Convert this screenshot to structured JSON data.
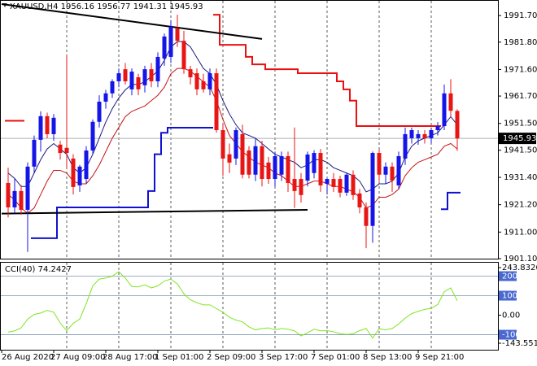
{
  "chart_data": [
    {
      "type": "candlestick",
      "title": "XAUUSD,H4",
      "ohlc": [
        [
          1929.3,
          1935.0,
          1916.5,
          1920.2
        ],
        [
          1920.2,
          1931.0,
          1918.0,
          1926.3
        ],
        [
          1926.3,
          1928.5,
          1917.5,
          1919.3
        ],
        [
          1919.3,
          1937.0,
          1903.6,
          1935.4
        ],
        [
          1935.4,
          1947.0,
          1933.0,
          1945.4
        ],
        [
          1945.4,
          1956.0,
          1941.0,
          1954.2
        ],
        [
          1954.2,
          1955.5,
          1946.0,
          1947.5
        ],
        [
          1947.5,
          1955.0,
          1945.0,
          1953.6
        ],
        [
          1943.6,
          1945.0,
          1938.0,
          1940.5
        ],
        [
          1942.4,
          1977.0,
          1935.0,
          1940.5
        ],
        [
          1938.4,
          1940.0,
          1925.0,
          1927.8
        ],
        [
          1928.4,
          1936.0,
          1926.0,
          1935.4
        ],
        [
          1930.8,
          1943.0,
          1929.0,
          1941.4
        ],
        [
          1941.4,
          1953.0,
          1940.0,
          1952.1
        ],
        [
          1952.1,
          1962.0,
          1950.0,
          1959.6
        ],
        [
          1959.6,
          1964.0,
          1957.0,
          1962.7
        ],
        [
          1962.7,
          1968.0,
          1961.0,
          1967.2
        ],
        [
          1967.2,
          1972.0,
          1965.0,
          1970.2
        ],
        [
          1971.7,
          1974.0,
          1966.0,
          1967.2
        ],
        [
          1964.2,
          1972.0,
          1962.0,
          1970.8
        ],
        [
          1968.7,
          1970.0,
          1962.0,
          1964.2
        ],
        [
          1965.7,
          1973.0,
          1963.0,
          1971.7
        ],
        [
          1971.7,
          1974.0,
          1965.0,
          1967.2
        ],
        [
          1967.2,
          1978.0,
          1965.0,
          1976.3
        ],
        [
          1975.7,
          1985.0,
          1973.0,
          1983.9
        ],
        [
          1976.3,
          1990.0,
          1974.0,
          1987.5
        ],
        [
          1986.9,
          1992.0,
          1980.0,
          1982.3
        ],
        [
          1982.3,
          1986.0,
          1970.0,
          1971.7
        ],
        [
          1971.7,
          1973.0,
          1966.0,
          1968.7
        ],
        [
          1970.2,
          1972.0,
          1962.0,
          1964.2
        ],
        [
          1967.2,
          1970.0,
          1963.0,
          1964.2
        ],
        [
          1964.2,
          1972.0,
          1962.0,
          1970.2
        ],
        [
          1970.2,
          1972.0,
          1948.0,
          1949.0
        ],
        [
          1949.0,
          1951.0,
          1932.0,
          1938.4
        ],
        [
          1940.0,
          1944.0,
          1933.0,
          1936.9
        ],
        [
          1938.4,
          1950.0,
          1936.0,
          1949.0
        ],
        [
          1947.5,
          1951.0,
          1931.0,
          1932.4
        ],
        [
          1941.4,
          1943.0,
          1931.0,
          1932.4
        ],
        [
          1932.4,
          1946.0,
          1930.0,
          1943.0
        ],
        [
          1943.0,
          1945.0,
          1928.0,
          1930.8
        ],
        [
          1936.9,
          1939.0,
          1929.0,
          1930.8
        ],
        [
          1930.8,
          1941.0,
          1928.0,
          1939.3
        ],
        [
          1932.4,
          1941.0,
          1930.0,
          1939.3
        ],
        [
          1939.3,
          1941.0,
          1926.0,
          1929.3
        ],
        [
          1930.8,
          1950.0,
          1920.0,
          1926.3
        ],
        [
          1930.8,
          1933.0,
          1922.0,
          1924.8
        ],
        [
          1930.2,
          1941.0,
          1928.0,
          1939.9
        ],
        [
          1933.0,
          1941.5,
          1931.0,
          1940.5
        ],
        [
          1940.5,
          1942.0,
          1926.0,
          1928.4
        ],
        [
          1929.0,
          1931.0,
          1925.0,
          1930.8
        ],
        [
          1930.8,
          1933.0,
          1926.0,
          1927.8
        ],
        [
          1930.8,
          1932.0,
          1924.0,
          1925.7
        ],
        [
          1925.7,
          1933.0,
          1924.5,
          1932.4
        ],
        [
          1932.4,
          1934.0,
          1923.0,
          1924.8
        ],
        [
          1925.4,
          1927.0,
          1918.0,
          1920.2
        ],
        [
          1920.2,
          1922.0,
          1905.0,
          1913.3
        ],
        [
          1913.3,
          1941.0,
          1907.0,
          1940.5
        ],
        [
          1940.5,
          1942.0,
          1930.0,
          1932.4
        ],
        [
          1932.4,
          1937.0,
          1929.0,
          1935.4
        ],
        [
          1935.4,
          1937.0,
          1926.0,
          1930.2
        ],
        [
          1928.4,
          1941.0,
          1927.0,
          1939.3
        ],
        [
          1938.4,
          1950.0,
          1936.0,
          1947.5
        ],
        [
          1946.0,
          1950.0,
          1944.0,
          1949.0
        ],
        [
          1946.0,
          1949.0,
          1943.5,
          1947.5
        ],
        [
          1947.5,
          1949.0,
          1944.0,
          1946.0
        ],
        [
          1946.0,
          1950.0,
          1944.0,
          1949.0
        ],
        [
          1949.0,
          1952.0,
          1947.0,
          1950.5
        ],
        [
          1950.5,
          1966.0,
          1949.0,
          1962.7
        ],
        [
          1962.7,
          1968.0,
          1954.0,
          1956.2
        ],
        [
          1956.16,
          1956.77,
          1941.31,
          1945.93
        ]
      ],
      "bull_color": "#1515e8",
      "bear_color": "#e81515",
      "series": [
        {
          "color": "#1a1a80",
          "values": [
            1933,
            1931,
            1928,
            1928,
            1933,
            1938,
            1942,
            1944,
            1942,
            1940,
            1935,
            1933,
            1935,
            1940,
            1946,
            1952,
            1957,
            1961,
            1964,
            1966,
            1966,
            1967,
            1969,
            1971,
            1975,
            1980,
            1982,
            1982,
            1980,
            1976,
            1972,
            1970,
            1966,
            1960,
            1955,
            1951,
            1948,
            1947,
            1946,
            1944,
            1942,
            1940,
            1939,
            1938,
            1937,
            1935,
            1936,
            1938,
            1938,
            1937,
            1935,
            1934,
            1933,
            1932,
            1930,
            1926,
            1927,
            1929,
            1929,
            1930,
            1933,
            1939,
            1943,
            1945,
            1946,
            1947,
            1948,
            1951,
            1954,
            1951
          ]
        },
        {
          "color": "#c81414",
          "values": [
            1925,
            1923,
            1920,
            1918,
            1920,
            1925,
            1930,
            1934,
            1934,
            1933,
            1930,
            1929,
            1929,
            1932,
            1936,
            1941,
            1946,
            1950,
            1954,
            1956,
            1957,
            1958,
            1960,
            1962,
            1965,
            1970,
            1972,
            1972,
            1971,
            1969,
            1967,
            1965,
            1960,
            1953,
            1947,
            1944,
            1941,
            1939,
            1937,
            1936,
            1935,
            1933,
            1932,
            1930,
            1928,
            1928,
            1929,
            1930,
            1930,
            1929,
            1928,
            1928,
            1927,
            1926,
            1924,
            1920,
            1921,
            1924,
            1924,
            1925,
            1927,
            1932,
            1935,
            1937,
            1938,
            1939,
            1940,
            1943,
            1944,
            1942
          ]
        },
        {
          "color": "#e81010",
          "step": true,
          "width": 2,
          "values": [
            1952.5,
            1952.5,
            1952.5,
            null,
            null,
            null,
            null,
            null,
            null,
            null,
            null,
            null,
            null,
            null,
            null,
            null,
            null,
            null,
            null,
            null,
            null,
            null,
            null,
            null,
            null,
            null,
            null,
            null,
            null,
            null,
            null,
            null,
            1992,
            1980.8,
            1980.8,
            1980.8,
            1980.8,
            1976.3,
            1973.5,
            1973.5,
            1971.7,
            1971.7,
            1971.7,
            1971.7,
            1971.7,
            1970.2,
            1970.2,
            1970.2,
            1970.2,
            1970.2,
            1970.2,
            1967.2,
            1964.2,
            1960,
            1950.5,
            1950.5,
            1950.5,
            1950.5,
            1950.5,
            1950.5,
            1950.5,
            1950.5,
            1950.5,
            1950.5,
            1950.5,
            1950.5,
            1950.5,
            null,
            null,
            null
          ]
        },
        {
          "color": "#1010d0",
          "step": true,
          "width": 2,
          "values": [
            null,
            null,
            null,
            null,
            1908.7,
            1908.7,
            1908.7,
            1908.7,
            1920.2,
            1920.2,
            1920.2,
            1920.2,
            1920.2,
            1920.2,
            1920.2,
            1920.2,
            1920.2,
            1920.2,
            1920.2,
            1920.2,
            1920.2,
            1920.2,
            1926.3,
            1940,
            1948,
            1949.9,
            1949.9,
            1949.9,
            1949.9,
            1949.9,
            1949.9,
            1949.9,
            null,
            null,
            null,
            null,
            null,
            null,
            null,
            null,
            null,
            null,
            null,
            null,
            null,
            null,
            null,
            null,
            null,
            null,
            null,
            null,
            null,
            null,
            null,
            null,
            null,
            null,
            null,
            null,
            null,
            null,
            null,
            null,
            null,
            null,
            null,
            1919.5,
            1925.7,
            1925.7
          ]
        }
      ],
      "trendlines": [
        {
          "from": [
            -1,
            1996.0
          ],
          "to": [
            39,
            1983.0
          ],
          "color": "#000000"
        },
        {
          "from": [
            -1,
            1917.9
          ],
          "to": [
            46,
            1919.3
          ],
          "color": "#000000"
        }
      ],
      "ylim": [
        1901.1,
        1997.5
      ],
      "yticks": [
        {
          "value": 1991.7,
          "label": "1991.70"
        },
        {
          "value": 1981.8,
          "label": "1981.80"
        },
        {
          "value": 1971.6,
          "label": "1971.60"
        },
        {
          "value": 1961.7,
          "label": "1961.70"
        },
        {
          "value": 1951.5,
          "label": "1951.50"
        },
        {
          "value": 1941.5,
          "label": "1941.50"
        },
        {
          "value": 1931.4,
          "label": "1931.40"
        },
        {
          "value": 1921.2,
          "label": "1921.20"
        },
        {
          "value": 1911,
          "label": "1911.00"
        },
        {
          "value": 1901.1,
          "label": "1901.10"
        }
      ],
      "xticks": [
        {
          "value": -1,
          "label": "26 Aug 2020"
        },
        {
          "value": 7,
          "label": "27 Aug 09:00"
        },
        {
          "value": 15,
          "label": "28 Aug 17:00"
        },
        {
          "value": 23,
          "label": "1 Sep 01:00"
        },
        {
          "value": 31,
          "label": "2 Sep 09:00"
        },
        {
          "value": 39,
          "label": "3 Sep 17:00"
        },
        {
          "value": 47,
          "label": "7 Sep 01:00"
        },
        {
          "value": 55,
          "label": "8 Sep 13:00"
        },
        {
          "value": 63,
          "label": "9 Sep 21:00"
        }
      ],
      "grid": true
    },
    {
      "type": "line",
      "title": "CCI(40)",
      "series": [
        {
          "color": "#7ee61e",
          "values": [
            -87,
            -80,
            -65,
            -20,
            4,
            11,
            25,
            15,
            -40,
            -79,
            -42,
            -20,
            60,
            150,
            185,
            190,
            200,
            223,
            190,
            147,
            145,
            155,
            140,
            150,
            175,
            185,
            160,
            110,
            79,
            64,
            53,
            53,
            34,
            15,
            -11,
            -25,
            -34,
            -60,
            -75,
            -68,
            -65,
            -75,
            -68,
            -72,
            -80,
            -106,
            -90,
            -72,
            -80,
            -79,
            -85,
            -95,
            -98,
            -95,
            -79,
            -68,
            -117,
            -70,
            -75,
            -68,
            -45,
            -15,
            8,
            20,
            30,
            35,
            55,
            120,
            140,
            74.2427
          ]
        }
      ],
      "ylim": [
        -143.5517,
        243.8326
      ],
      "yticks": [
        243.8326,
        200,
        100,
        {
          "value": 0,
          "label": "0.00"
        },
        -100,
        -143.5517
      ],
      "levels": [
        200,
        100,
        -100
      ]
    }
  ]
}
